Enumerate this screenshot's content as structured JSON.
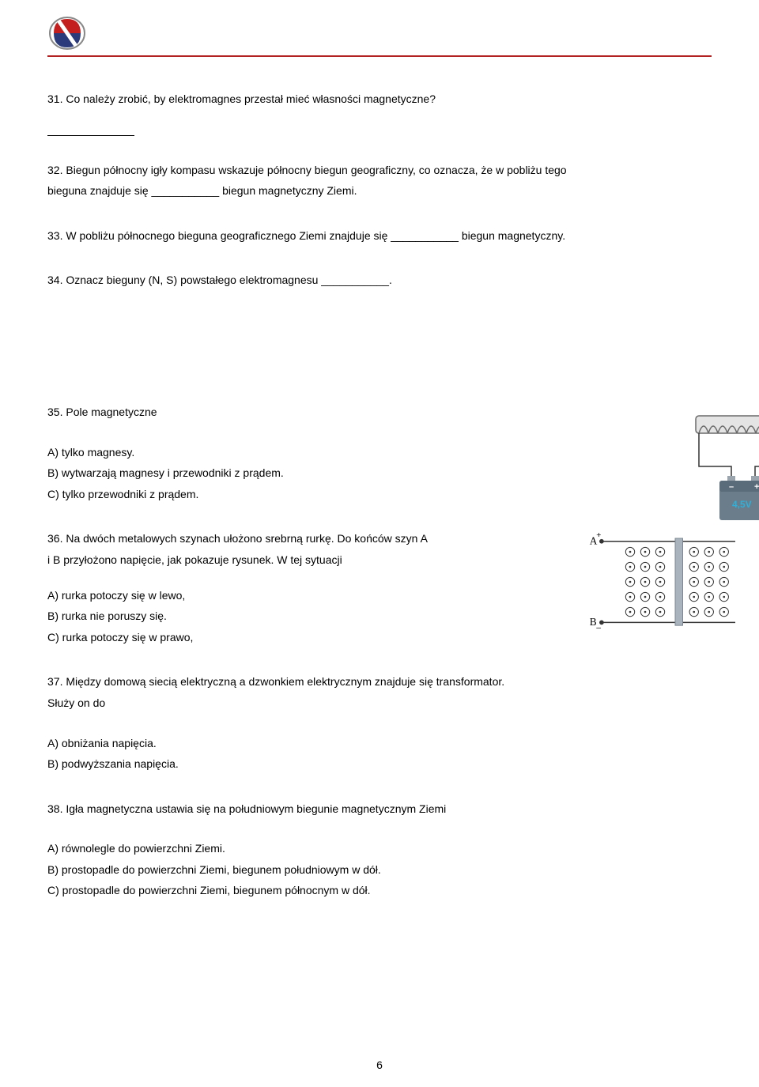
{
  "logo": {
    "top_color": "#c41e1e",
    "bottom_color": "#2a3a7a",
    "ring_color": "#888888"
  },
  "q31": {
    "text": "31. Co należy zrobić, by elektromagnes przestał mieć własności magnetyczne?"
  },
  "q32": {
    "line1": "32. Biegun północny igły kompasu wskazuje północny biegun geograficzny, co oznacza, że w pobliżu tego",
    "line2_a": "bieguna znajduje się ___________ biegun magnetyczny Ziemi."
  },
  "q33": {
    "text": "33. W pobliżu północnego bieguna geograficznego Ziemi znajduje się ___________ biegun magnetyczny."
  },
  "q34": {
    "text": "34. Oznacz bieguny (N, S) powstałego elektromagnesu ___________.",
    "fig": {
      "battery_label": "4,5V",
      "battery_color": "#6b7c8a",
      "battery_label_color": "#2fb0d8",
      "coil_color": "#6a6a6a",
      "wire_color": "#333333",
      "minus": "–",
      "plus": "+"
    }
  },
  "q35": {
    "title": "35. Pole magnetyczne",
    "optA": "A) tylko magnesy.",
    "optB": "B) wytwarzają magnesy i przewodniki z prądem.",
    "optC": "C) tylko przewodniki z prądem."
  },
  "q36": {
    "line1": "36. Na dwóch metalowych szynach ułożono srebrną rurkę. Do końców szyn A",
    "line2": "i B przyłożono napięcie, jak pokazuje rysunek. W tej sytuacji",
    "optA": "A) rurka potoczy się w lewo,",
    "optB": "B) rurka nie poruszy się.",
    "optC": "C) rurka potoczy się w prawo,",
    "fig": {
      "labelA": "A",
      "labelB": "B",
      "plus": "+",
      "minus": "–",
      "rail_color": "#333333",
      "bar_color": "#a9b3bd",
      "dot_stroke": "#333333"
    }
  },
  "q37": {
    "line1": "37. Między domową siecią elektryczną a dzwonkiem elektrycznym znajduje się transformator.",
    "line2": "Służy on do",
    "optA": "A) obniżania napięcia.",
    "optB": "B) podwyższania napięcia."
  },
  "q38": {
    "title": "38. Igła magnetyczna ustawia się na południowym biegunie magnetycznym Ziemi",
    "optA": "A) równolegle do powierzchni Ziemi.",
    "optB": "B) prostopadle do powierzchni Ziemi, biegunem południowym w dół.",
    "optC": "C) prostopadle do powierzchni Ziemi, biegunem północnym w dół."
  },
  "pageNumber": "6"
}
